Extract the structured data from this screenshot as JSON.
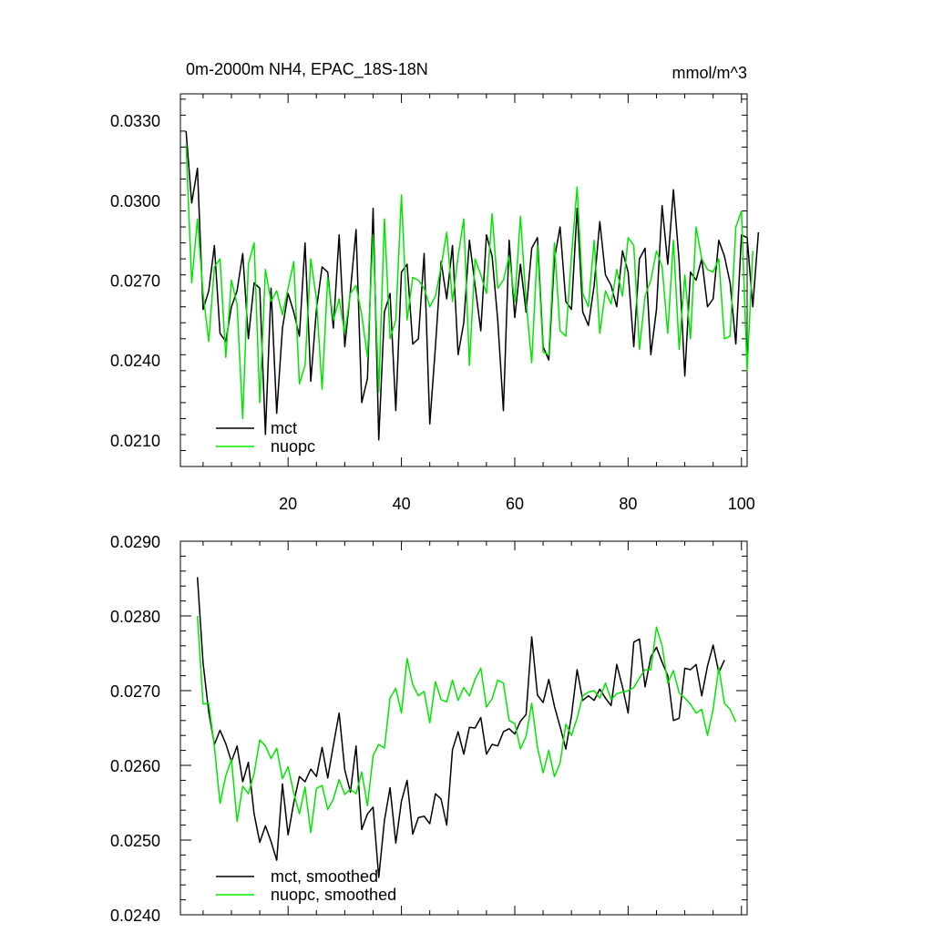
{
  "figure": {
    "title_left": "0m-2000m NH4, EPAC_18S-18N",
    "title_right": "mmol/m^3"
  },
  "colors": {
    "mct": "#000000",
    "nuopc": "#00e600"
  },
  "chart_data": [
    {
      "type": "line",
      "xlim": [
        1,
        101
      ],
      "ylim": [
        0.02,
        0.034
      ],
      "xticks": [
        20,
        40,
        60,
        80,
        100
      ],
      "xtick_labels": [
        "20",
        "40",
        "60",
        "80",
        "100"
      ],
      "yticks": [
        0.021,
        0.024,
        0.027,
        0.03,
        0.033
      ],
      "ytick_labels": [
        "0.0210",
        "0.0240",
        "0.0270",
        "0.0300",
        "0.0330"
      ],
      "legend_position": "bottom-left",
      "series": [
        {
          "name": "mct",
          "color": "#000000",
          "x_start": 2,
          "values": [
            0.0326,
            0.0299,
            0.0312,
            0.0259,
            0.0266,
            0.0283,
            0.025,
            0.0247,
            0.026,
            0.0266,
            0.028,
            0.0248,
            0.0269,
            0.0267,
            0.0212,
            0.0267,
            0.022,
            0.0252,
            0.0265,
            0.0258,
            0.0249,
            0.0284,
            0.0232,
            0.0259,
            0.0275,
            0.0273,
            0.0252,
            0.0287,
            0.0245,
            0.0266,
            0.0289,
            0.0224,
            0.0233,
            0.0297,
            0.021,
            0.0258,
            0.0265,
            0.0221,
            0.0273,
            0.0276,
            0.0246,
            0.0248,
            0.028,
            0.0216,
            0.0245,
            0.0277,
            0.0263,
            0.0283,
            0.0242,
            0.0254,
            0.0285,
            0.0268,
            0.0251,
            0.0287,
            0.0279,
            0.0255,
            0.0221,
            0.0285,
            0.0256,
            0.0276,
            0.0258,
            0.0282,
            0.0286,
            0.0245,
            0.024,
            0.0278,
            0.029,
            0.0262,
            0.0259,
            0.0297,
            0.0258,
            0.0253,
            0.0268,
            0.0292,
            0.0272,
            0.0268,
            0.026,
            0.0281,
            0.0273,
            0.0245,
            0.0278,
            0.0282,
            0.0242,
            0.0259,
            0.0298,
            0.0276,
            0.0304,
            0.0277,
            0.0234,
            0.0273,
            0.027,
            0.0278,
            0.026,
            0.0263,
            0.0285,
            0.0279,
            0.0269,
            0.0246,
            0.0287,
            0.0286,
            0.026,
            0.0288
          ]
        },
        {
          "name": "nuopc",
          "color": "#00e600",
          "x_start": 2,
          "values": [
            0.0321,
            0.0269,
            0.0293,
            0.0265,
            0.0247,
            0.0275,
            0.0278,
            0.0241,
            0.027,
            0.0261,
            0.0218,
            0.0276,
            0.0284,
            0.0224,
            0.0274,
            0.0262,
            0.0266,
            0.0257,
            0.0267,
            0.0277,
            0.0231,
            0.0238,
            0.0278,
            0.0263,
            0.0229,
            0.0271,
            0.0255,
            0.0263,
            0.025,
            0.0265,
            0.0268,
            0.0257,
            0.0241,
            0.0287,
            0.0228,
            0.0293,
            0.0248,
            0.0255,
            0.0302,
            0.0255,
            0.0271,
            0.027,
            0.0267,
            0.026,
            0.0264,
            0.0275,
            0.0288,
            0.0262,
            0.0279,
            0.0293,
            0.0238,
            0.0278,
            0.0272,
            0.0265,
            0.0295,
            0.0267,
            0.027,
            0.0279,
            0.0262,
            0.0294,
            0.0262,
            0.0239,
            0.0283,
            0.0243,
            0.0242,
            0.0284,
            0.0251,
            0.0249,
            0.0279,
            0.0305,
            0.0265,
            0.026,
            0.0285,
            0.025,
            0.0266,
            0.0261,
            0.0274,
            0.0264,
            0.0286,
            0.0283,
            0.0244,
            0.0264,
            0.027,
            0.0281,
            0.0275,
            0.025,
            0.0285,
            0.0244,
            0.0272,
            0.0248,
            0.029,
            0.0278,
            0.0274,
            0.0273,
            0.0278,
            0.0248,
            0.0249,
            0.029,
            0.0296,
            0.0236,
            0.0281
          ]
        }
      ],
      "legend": [
        {
          "label": "mct",
          "color": "#000000"
        },
        {
          "label": "nuopc",
          "color": "#00e600"
        }
      ]
    },
    {
      "type": "line",
      "xlim": [
        1,
        101
      ],
      "ylim": [
        0.024,
        0.029
      ],
      "xticks": [
        20,
        40,
        60,
        80,
        100
      ],
      "xtick_labels": [
        "",
        "",
        "",
        "",
        ""
      ],
      "yticks": [
        0.024,
        0.025,
        0.026,
        0.027,
        0.028,
        0.029
      ],
      "ytick_labels": [
        "0.0240",
        "0.0250",
        "0.0260",
        "0.0270",
        "0.0280",
        "0.0290"
      ],
      "legend_position": "bottom-left",
      "series": [
        {
          "name": "mct, smoothed",
          "color": "#000000",
          "x_start": 4,
          "values": [
            0.02852,
            0.02737,
            0.02671,
            0.02628,
            0.02647,
            0.02629,
            0.02605,
            0.02626,
            0.02578,
            0.02604,
            0.02535,
            0.02497,
            0.02519,
            0.02498,
            0.02473,
            0.02575,
            0.02507,
            0.0255,
            0.02585,
            0.02578,
            0.02595,
            0.02585,
            0.02624,
            0.02583,
            0.02627,
            0.0267,
            0.02594,
            0.02564,
            0.02626,
            0.02514,
            0.02535,
            0.02544,
            0.0245,
            0.02526,
            0.0257,
            0.02496,
            0.02552,
            0.0258,
            0.02508,
            0.0253,
            0.02532,
            0.02522,
            0.02562,
            0.02555,
            0.0252,
            0.02621,
            0.02645,
            0.02615,
            0.02651,
            0.0265,
            0.02664,
            0.02615,
            0.02628,
            0.02626,
            0.02645,
            0.02649,
            0.02642,
            0.02659,
            0.02668,
            0.02772,
            0.02694,
            0.02684,
            0.02715,
            0.02679,
            0.02652,
            0.02622,
            0.02666,
            0.02728,
            0.02687,
            0.02693,
            0.02687,
            0.02702,
            0.0269,
            0.0268,
            0.02735,
            0.02705,
            0.0267,
            0.02765,
            0.02769,
            0.02705,
            0.02745,
            0.02758,
            0.02738,
            0.0272,
            0.0266,
            0.02663,
            0.0273,
            0.02728,
            0.02735,
            0.02693,
            0.02733,
            0.02761,
            0.02724,
            0.02741
          ]
        },
        {
          "name": "nuopc, smoothed",
          "color": "#00e600",
          "x_start": 4,
          "values": [
            0.028,
            0.02682,
            0.02683,
            0.02625,
            0.02549,
            0.02586,
            0.02608,
            0.02525,
            0.02572,
            0.02562,
            0.02589,
            0.02634,
            0.02626,
            0.02609,
            0.02623,
            0.02582,
            0.02598,
            0.02563,
            0.02535,
            0.02571,
            0.0251,
            0.02569,
            0.02573,
            0.02541,
            0.02555,
            0.02581,
            0.02561,
            0.02568,
            0.02562,
            0.02591,
            0.02546,
            0.02613,
            0.02628,
            0.02623,
            0.0269,
            0.02703,
            0.0267,
            0.02743,
            0.02708,
            0.02693,
            0.02699,
            0.02657,
            0.02712,
            0.02688,
            0.02685,
            0.02714,
            0.02687,
            0.02704,
            0.02693,
            0.02715,
            0.0273,
            0.02678,
            0.02689,
            0.02714,
            0.0271,
            0.0266,
            0.02656,
            0.02622,
            0.02639,
            0.02683,
            0.02624,
            0.0259,
            0.0262,
            0.02585,
            0.02603,
            0.02655,
            0.0264,
            0.02663,
            0.02693,
            0.02698,
            0.027,
            0.0269,
            0.0271,
            0.02688,
            0.02696,
            0.02698,
            0.027,
            0.02704,
            0.02717,
            0.02728,
            0.02728,
            0.02785,
            0.0276,
            0.0271,
            0.02727,
            0.02697,
            0.0269,
            0.02682,
            0.0267,
            0.02675,
            0.0264,
            0.02675,
            0.02731,
            0.02683,
            0.02675,
            0.02658
          ]
        }
      ],
      "legend": [
        {
          "label": "mct, smoothed",
          "color": "#000000"
        },
        {
          "label": "nuopc, smoothed",
          "color": "#00e600"
        }
      ]
    }
  ]
}
